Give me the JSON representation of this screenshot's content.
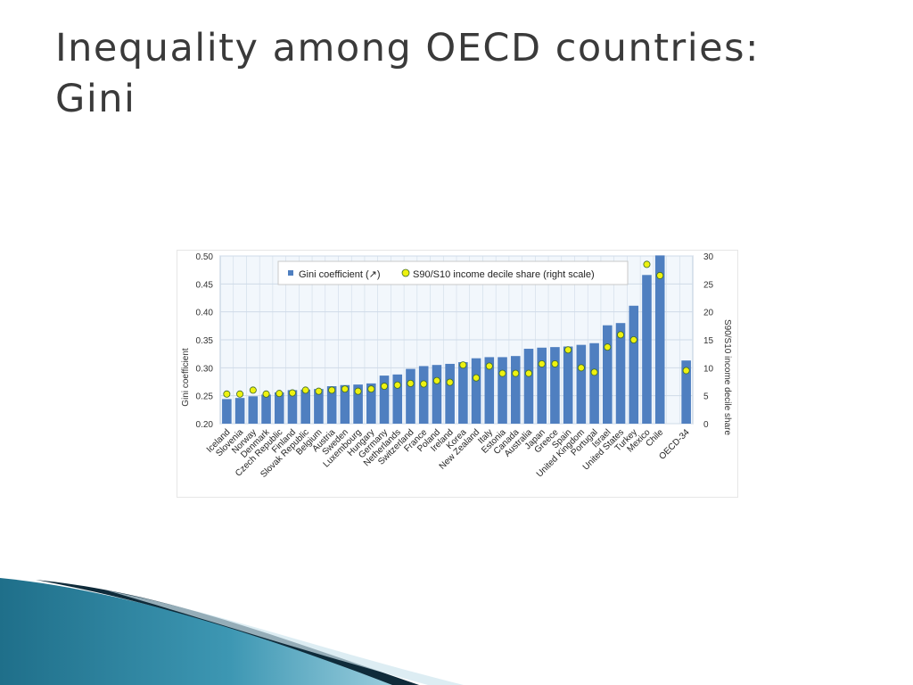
{
  "slide": {
    "title_line1": "Inequality among OECD countries:",
    "title_line2": "Gini"
  },
  "colors": {
    "bar": "#4f7fc0",
    "marker_fill": "#eef20f",
    "marker_stroke": "#3f6a2a",
    "plot_bg": "#f2f7fc",
    "grid": "#cfdbe8",
    "title_text": "#3a3a3a",
    "deco_teal": "#2d7f98",
    "deco_dark": "#123344"
  },
  "chart_data": {
    "type": "bar",
    "categories": [
      "Iceland",
      "Slovenia",
      "Norway",
      "Denmark",
      "Czech Republic",
      "Finland",
      "Slovak Republic",
      "Belgium",
      "Austria",
      "Sweden",
      "Luxembourg",
      "Hungary",
      "Germany",
      "Netherlands",
      "Switzerland",
      "France",
      "Poland",
      "Ireland",
      "Korea",
      "New Zealand",
      "Italy",
      "Estonia",
      "Canada",
      "Australia",
      "Japan",
      "Greece",
      "Spain",
      "United Kingdom",
      "Portugal",
      "Israel",
      "United States",
      "Turkey",
      "Mexico",
      "Chile",
      "",
      "OECD-34"
    ],
    "series": [
      {
        "name": "Gini coefficient (↗)",
        "axis": "left",
        "kind": "bar",
        "values": [
          0.244,
          0.246,
          0.249,
          0.252,
          0.256,
          0.26,
          0.261,
          0.262,
          0.267,
          0.269,
          0.27,
          0.272,
          0.286,
          0.288,
          0.298,
          0.303,
          0.305,
          0.307,
          0.31,
          0.317,
          0.319,
          0.319,
          0.321,
          0.334,
          0.336,
          0.337,
          0.338,
          0.341,
          0.344,
          0.376,
          0.38,
          0.411,
          0.466,
          0.501,
          null,
          0.313
        ]
      },
      {
        "name": "S90/S10 income decile share (right scale)",
        "axis": "right",
        "kind": "marker",
        "values": [
          5.3,
          5.3,
          6.0,
          5.3,
          5.4,
          5.5,
          6.0,
          5.8,
          6.0,
          6.2,
          5.8,
          6.2,
          6.7,
          6.9,
          7.2,
          7.1,
          7.7,
          7.4,
          10.5,
          8.2,
          10.3,
          9.0,
          9.0,
          9.0,
          10.7,
          10.7,
          13.2,
          10.0,
          9.2,
          13.7,
          15.9,
          15.0,
          28.5,
          26.5,
          null,
          9.5
        ]
      }
    ],
    "ylabel": "Gini coefficient",
    "ylabel_right": "S90/S10 income decile share",
    "ylim": [
      0.2,
      0.5
    ],
    "yticks": [
      "0.20",
      "0.25",
      "0.30",
      "0.35",
      "0.40",
      "0.45",
      "0.50"
    ],
    "ylim_right": [
      0,
      30
    ],
    "yticks_right": [
      "0",
      "5",
      "10",
      "15",
      "20",
      "25",
      "30"
    ],
    "grid": true,
    "legend_position": "top-center"
  }
}
